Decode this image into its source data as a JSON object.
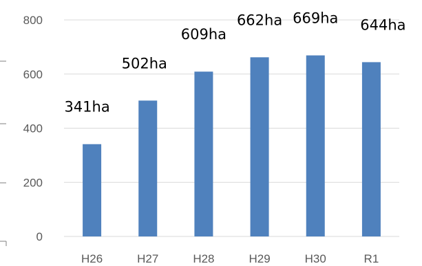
{
  "chart_data": {
    "type": "bar",
    "categories": [
      "H26",
      "H27",
      "H28",
      "H29",
      "H30",
      "R1"
    ],
    "values": [
      341,
      502,
      609,
      662,
      669,
      644
    ],
    "data_labels": [
      "341ha",
      "502ha",
      "609ha",
      "662ha",
      "669ha",
      "644ha"
    ],
    "yticks": [
      "0",
      "200",
      "400",
      "600",
      "800"
    ],
    "ylim": [
      0,
      800
    ],
    "grid": true,
    "legend": "none",
    "bar_color": "#4f81bd"
  }
}
